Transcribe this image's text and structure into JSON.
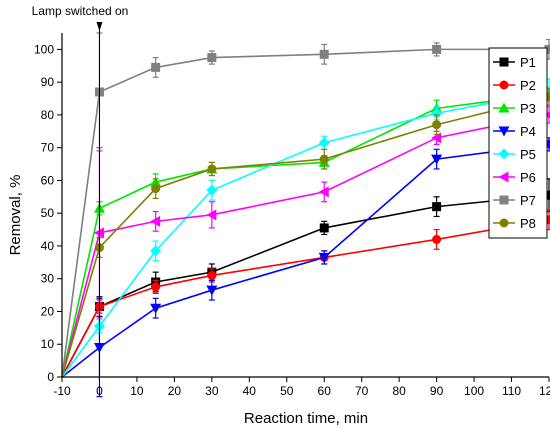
{
  "chart_data": {
    "type": "line",
    "xlabel": "Reaction time, min",
    "ylabel": "Removal, %",
    "annotation": {
      "text": "Lamp switched on",
      "x": 0
    },
    "xlim": [
      -10,
      120
    ],
    "ylim": [
      0,
      105
    ],
    "xticks": [
      -10,
      0,
      10,
      20,
      30,
      40,
      50,
      60,
      70,
      80,
      90,
      100,
      110,
      120
    ],
    "yticks": [
      0,
      10,
      20,
      30,
      40,
      50,
      60,
      70,
      80,
      90,
      100
    ],
    "grid": false,
    "legend_position": "top-right",
    "x": [
      -10,
      0,
      15,
      30,
      60,
      90,
      120
    ],
    "series": [
      {
        "name": "P1",
        "color": "#000000",
        "marker": "square",
        "values": [
          0,
          21.5,
          29,
          32,
          45.5,
          52,
          55.5
        ],
        "errors": [
          0,
          3,
          3,
          2.5,
          2,
          3,
          5
        ]
      },
      {
        "name": "P2",
        "color": "#ff0000",
        "marker": "circle",
        "values": [
          0,
          21.5,
          27.5,
          31,
          36.5,
          42,
          48
        ],
        "errors": [
          0,
          2,
          2,
          2,
          2,
          3,
          3
        ]
      },
      {
        "name": "P3",
        "color": "#00e600",
        "marker": "triangle-up",
        "values": [
          0,
          51.5,
          59.5,
          63.5,
          65.5,
          82,
          86.5
        ],
        "errors": [
          0,
          2,
          2.5,
          2,
          2,
          2.5,
          2
        ]
      },
      {
        "name": "P4",
        "color": "#0000ff",
        "marker": "triangle-down",
        "values": [
          0,
          9,
          21,
          26.5,
          36.5,
          66.5,
          71
        ],
        "errors": [
          0,
          15,
          3,
          3,
          2,
          3,
          2
        ]
      },
      {
        "name": "P5",
        "color": "#00ffff",
        "marker": "diamond",
        "values": [
          0,
          15.5,
          38.5,
          57,
          71.5,
          80.5,
          87
        ],
        "errors": [
          0,
          2,
          3,
          3,
          2,
          2,
          4
        ]
      },
      {
        "name": "P6",
        "color": "#ff00ff",
        "marker": "triangle-left",
        "values": [
          0,
          44,
          47.5,
          49.5,
          56.5,
          73,
          80
        ],
        "errors": [
          0,
          26,
          3,
          4,
          3,
          2,
          2.5
        ]
      },
      {
        "name": "P7",
        "color": "#808080",
        "marker": "square",
        "values": [
          0,
          87,
          94.5,
          97.5,
          98.5,
          100,
          100
        ],
        "errors": [
          0,
          18,
          3,
          2,
          3,
          2,
          3
        ]
      },
      {
        "name": "P8",
        "color": "#808000",
        "marker": "circle",
        "values": [
          0,
          39.5,
          57.5,
          63.5,
          66.5,
          77,
          85.5
        ],
        "errors": [
          0,
          3,
          3,
          2,
          3,
          3,
          2.5
        ]
      }
    ]
  }
}
